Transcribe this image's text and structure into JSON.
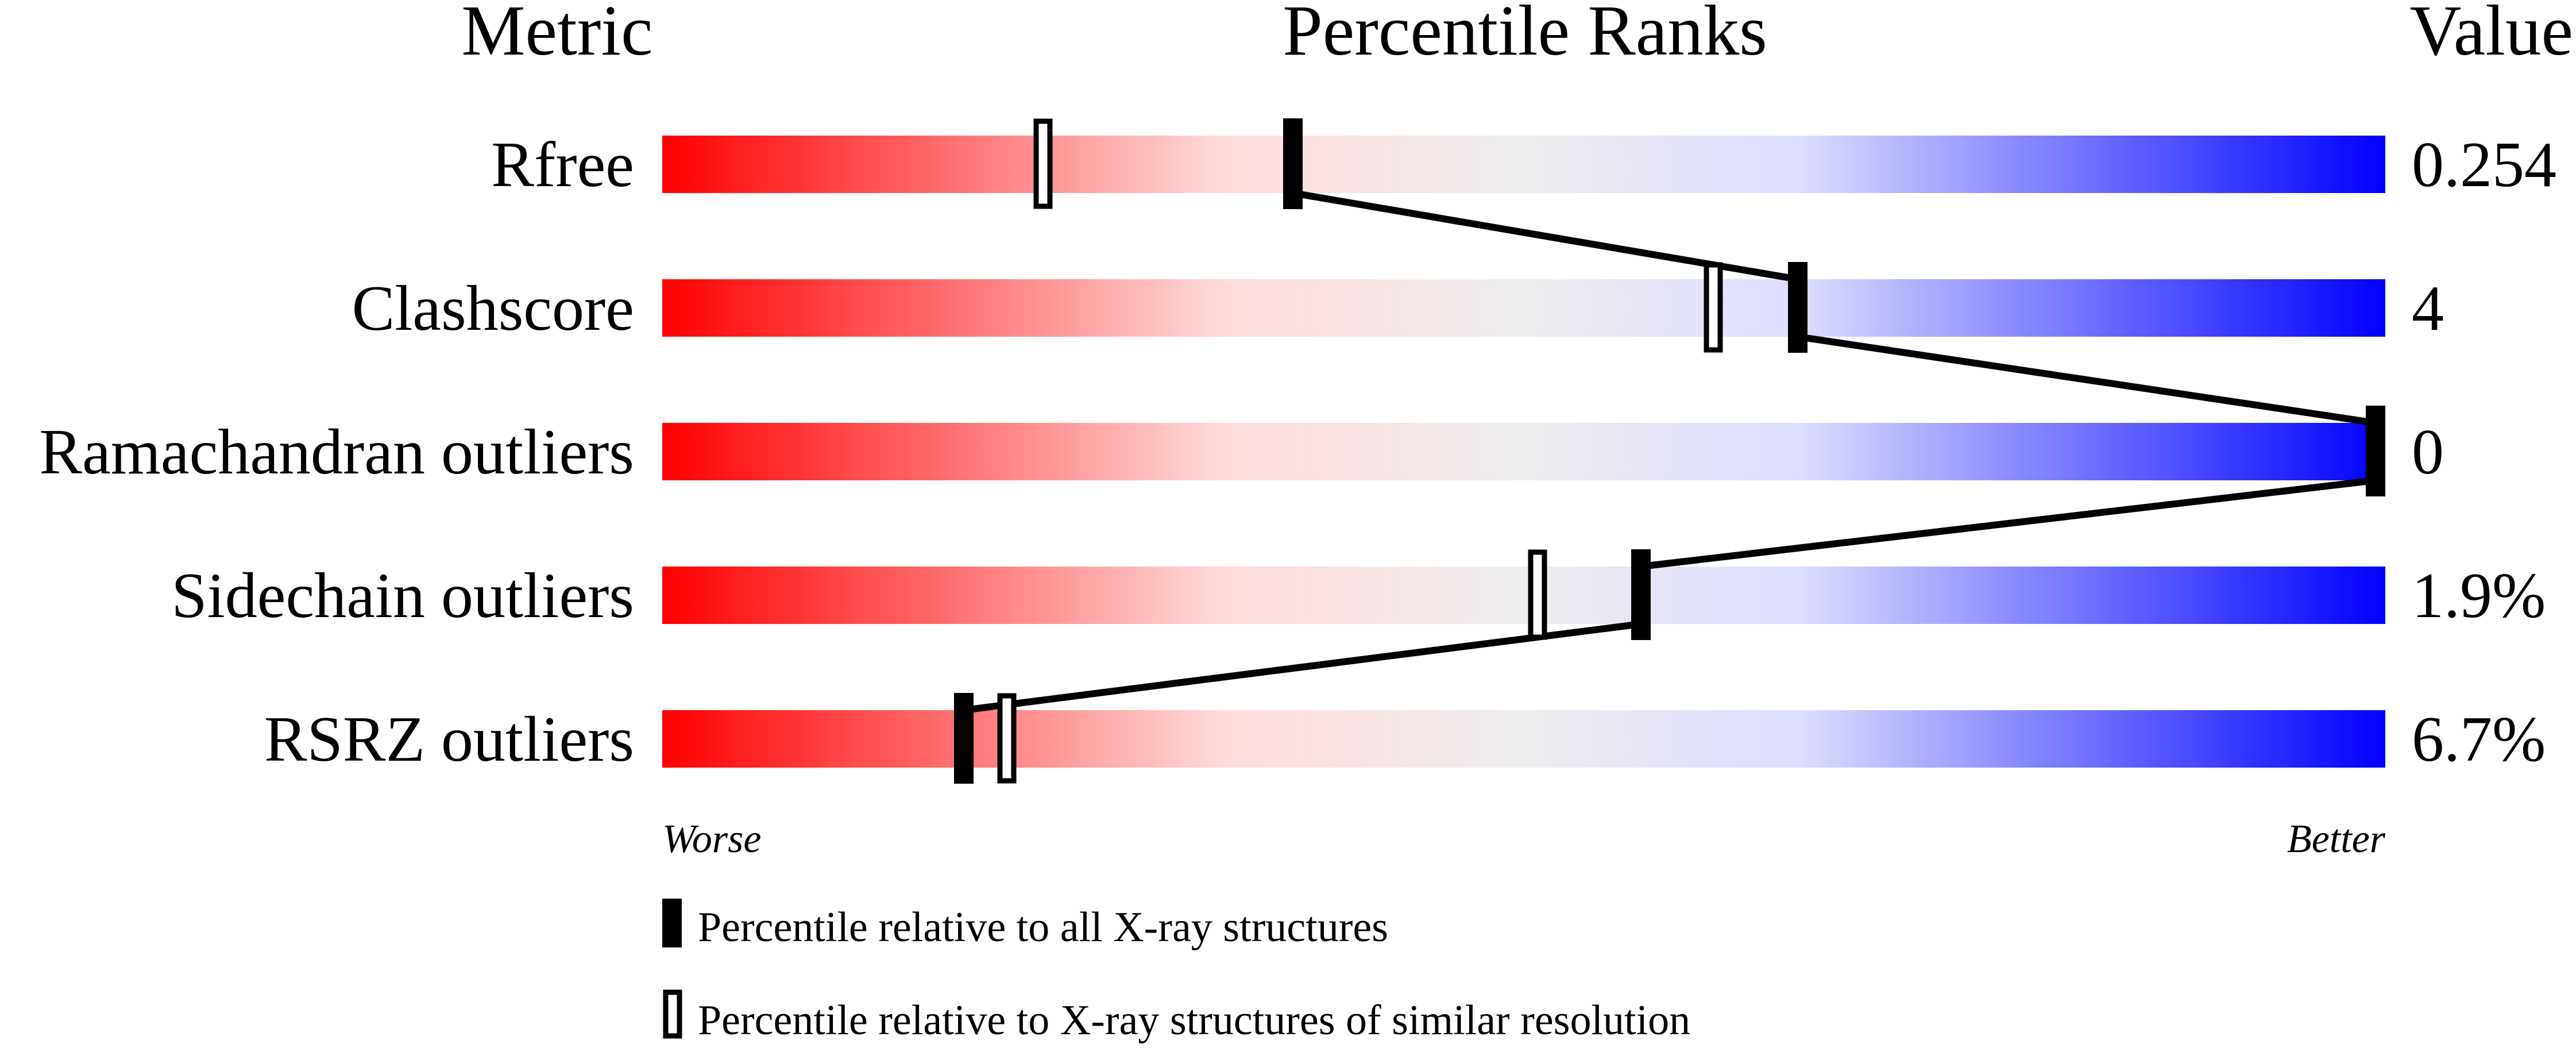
{
  "chart_data": {
    "type": "percentile-bar",
    "headers": {
      "metric": "Metric",
      "percentile": "Percentile Ranks",
      "value": "Value"
    },
    "xlim": [
      0,
      100
    ],
    "gradient_colors": [
      "#ff0000",
      "#ffdddd",
      "#eeeeee",
      "#ddddff",
      "#0000ff"
    ],
    "axis_labels": {
      "left": "Worse",
      "right": "Better"
    },
    "rows": [
      {
        "metric": "Rfree",
        "value": "0.254",
        "percentile_all": 36.6,
        "percentile_similar": 22.1
      },
      {
        "metric": "Clashscore",
        "value": "4",
        "percentile_all": 65.9,
        "percentile_similar": 61.0
      },
      {
        "metric": "Ramachandran outliers",
        "value": "0",
        "percentile_all": 100,
        "percentile_similar": 100
      },
      {
        "metric": "Sidechain outliers",
        "value": "1.9%",
        "percentile_all": 56.8,
        "percentile_similar": 50.8
      },
      {
        "metric": "RSRZ outliers",
        "value": "6.7%",
        "percentile_all": 17.5,
        "percentile_similar": 20.0
      }
    ],
    "legend": [
      {
        "marker": "filled",
        "label": "Percentile relative to all X-ray structures"
      },
      {
        "marker": "hollow",
        "label": "Percentile relative to X-ray structures of similar resolution"
      }
    ]
  }
}
